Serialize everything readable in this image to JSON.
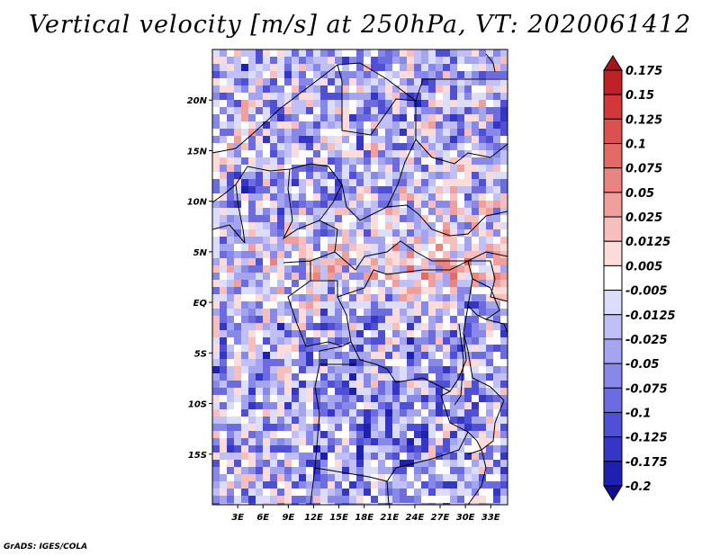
{
  "title": "Vertical velocity [m/s] at 250hPa, VT: 2020061412",
  "credit": "GrADS: IGES/COLA",
  "map": {
    "lat_ticks": [
      "20N",
      "15N",
      "10N",
      "5N",
      "EQ",
      "5S",
      "10S",
      "15S"
    ],
    "lon_ticks": [
      "3E",
      "6E",
      "9E",
      "12E",
      "15E",
      "18E",
      "21E",
      "24E",
      "27E",
      "30E",
      "33E"
    ],
    "lon_range": [
      0,
      35
    ],
    "lat_range": [
      -20,
      25
    ]
  },
  "colorbar": {
    "labels": [
      "0.175",
      "0.15",
      "0.125",
      "0.1",
      "0.075",
      "0.05",
      "0.025",
      "0.0125",
      "0.005",
      "-0.005",
      "-0.0125",
      "-0.025",
      "-0.05",
      "-0.075",
      "-0.1",
      "-0.125",
      "-0.175",
      "-0.2"
    ],
    "colors": [
      "#a8141e",
      "#c02126",
      "#d2383a",
      "#dc5050",
      "#e46a66",
      "#ea8480",
      "#f0a09c",
      "#f6bebc",
      "#fbdcdb",
      "#ffffff",
      "#dcdcfb",
      "#c0c0f6",
      "#a4a4ef",
      "#8888e8",
      "#6c6ce0",
      "#5050d6",
      "#3636c6",
      "#2020b0",
      "#140a96"
    ]
  }
}
